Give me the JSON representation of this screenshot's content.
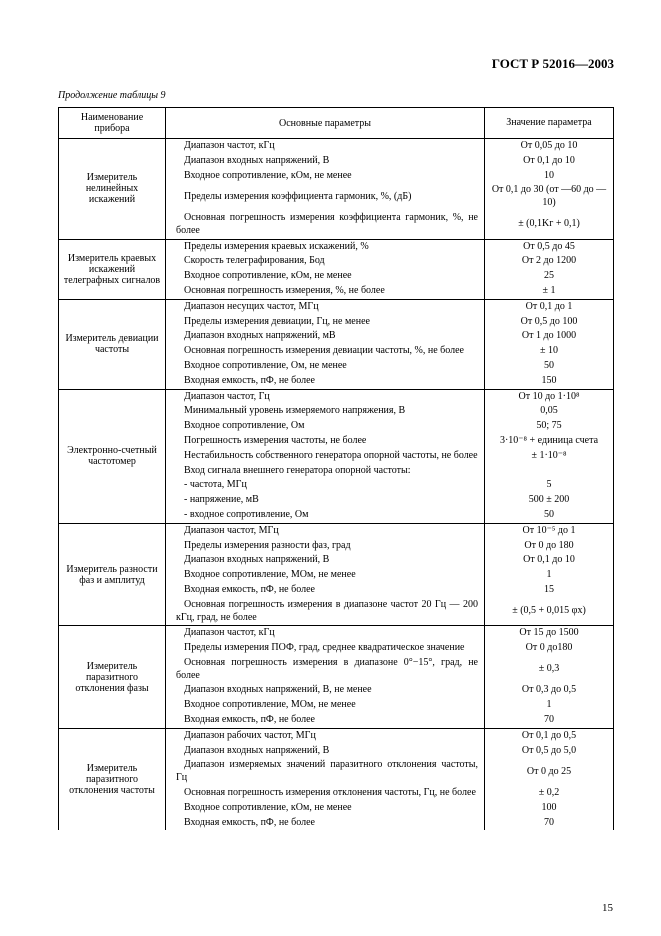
{
  "header": "ГОСТ Р 52016—2003",
  "caption": "Продолжение таблицы 9",
  "page_number": "15",
  "columns": [
    "Наименование прибора",
    "Основные параметры",
    "Значение параметра"
  ],
  "groups": [
    {
      "name": "Измеритель нелинейных искажений",
      "rows": [
        {
          "p": "Диапазон частот, кГц",
          "v": "От 0,05 до 10"
        },
        {
          "p": "Диапазон входных напряжений, В",
          "v": "От 0,1 до 10"
        },
        {
          "p": "Входное сопротивление, кОм, не менее",
          "v": "10"
        },
        {
          "p": "Пределы измерения коэффициента гармоник, %, (дБ)",
          "v": "От 0,1 до 30 (от —60 до —10)"
        },
        {
          "p": "Основная погрешность измерения коэффициента гармоник, %, не более",
          "v": "± (0,1Kг + 0,1)"
        }
      ]
    },
    {
      "name": "Измеритель краевых искажений телеграфных сигналов",
      "rows": [
        {
          "p": "Пределы измерения краевых искажений, %",
          "v": "От 0,5 до 45"
        },
        {
          "p": "Скорость телеграфирования, Бод",
          "v": "От 2 до 1200"
        },
        {
          "p": "Входное сопротивление, кОм, не менее",
          "v": "25"
        },
        {
          "p": "Основная погрешность измерения, %, не более",
          "v": "± 1"
        }
      ]
    },
    {
      "name": "Измеритель девиации частоты",
      "rows": [
        {
          "p": "Диапазон несущих частот, МГц",
          "v": "От 0,1 до 1"
        },
        {
          "p": "Пределы измерения девиации, Гц, не менее",
          "v": "От 0,5 до 100"
        },
        {
          "p": "Диапазон входных напряжений, мВ",
          "v": "От 1 до 1000"
        },
        {
          "p": "Основная погрешность измерения девиации частоты, %, не более",
          "v": "± 10"
        },
        {
          "p": "Входное сопротивление, Ом, не менее",
          "v": "50"
        },
        {
          "p": "Входная емкость, пФ, не более",
          "v": "150"
        }
      ]
    },
    {
      "name": "Электронно-счетный частотомер",
      "rows": [
        {
          "p": "Диапазон частот, Гц",
          "v": "От 10 до 1·10⁸"
        },
        {
          "p": "Минимальный уровень измеряемого напряжения, В",
          "v": "0,05"
        },
        {
          "p": "Входное сопротивление, Ом",
          "v": "50; 75"
        },
        {
          "p": "Погрешность измерения частоты, не более",
          "v": "3·10⁻⁸ + единица счета"
        },
        {
          "p": "Нестабильность собственного генератора опорной частоты, не более",
          "v": "± 1·10⁻⁸"
        },
        {
          "p": "Вход сигнала внешнего генератора опорной частоты:",
          "v": ""
        },
        {
          "p": "- частота, МГц",
          "v": "5"
        },
        {
          "p": "- напряжение, мВ",
          "v": "500 ± 200"
        },
        {
          "p": "- входное сопротивление, Ом",
          "v": "50"
        }
      ]
    },
    {
      "name": "Измеритель разности фаз и амплитуд",
      "rows": [
        {
          "p": "Диапазон частот, МГц",
          "v": "От 10⁻⁵ до 1"
        },
        {
          "p": "Пределы измерения разности фаз, град",
          "v": "От 0 до 180"
        },
        {
          "p": "Диапазон входных напряжений, В",
          "v": "От 0,1 до 10"
        },
        {
          "p": "Входное сопротивление, МОм, не менее",
          "v": "1"
        },
        {
          "p": "Входная емкость, пФ, не более",
          "v": "15"
        },
        {
          "p": "Основная погрешность измерения в диапазоне частот 20 Гц — 200 кГц, град, не более",
          "v": "± (0,5 + 0,015 φx)"
        }
      ]
    },
    {
      "name": "Измеритель паразитного отклонения фазы",
      "rows": [
        {
          "p": "Диапазон частот, кГц",
          "v": "От 15 до 1500"
        },
        {
          "p": "Пределы измерения ПОФ, град, среднее квадратическое значение",
          "v": "От 0 до180"
        },
        {
          "p": "Основная погрешность измерения в диапазоне 0°−15°, град, не более",
          "v": "± 0,3"
        },
        {
          "p": "Диапазон входных напряжений, В, не менее",
          "v": "От 0,3 до 0,5"
        },
        {
          "p": "Входное сопротивление, МОм, не менее",
          "v": "1"
        },
        {
          "p": "Входная емкость, пФ, не более",
          "v": "70"
        }
      ]
    },
    {
      "name": "Измеритель паразитного отклонения частоты",
      "rows": [
        {
          "p": "Диапазон рабочих частот, МГц",
          "v": "От 0,1 до 0,5"
        },
        {
          "p": "Диапазон входных напряжений, В",
          "v": "От 0,5 до 5,0"
        },
        {
          "p": "Диапазон измеряемых значений паразитного отклонения частоты, Гц",
          "v": "От 0 до 25"
        },
        {
          "p": "Основная погрешность измерения отклонения частоты, Гц, не более",
          "v": "± 0,2"
        },
        {
          "p": "Входное сопротивление, кОм, не менее",
          "v": "100"
        },
        {
          "p": "Входная емкость, пФ, не более",
          "v": "70"
        }
      ]
    }
  ]
}
